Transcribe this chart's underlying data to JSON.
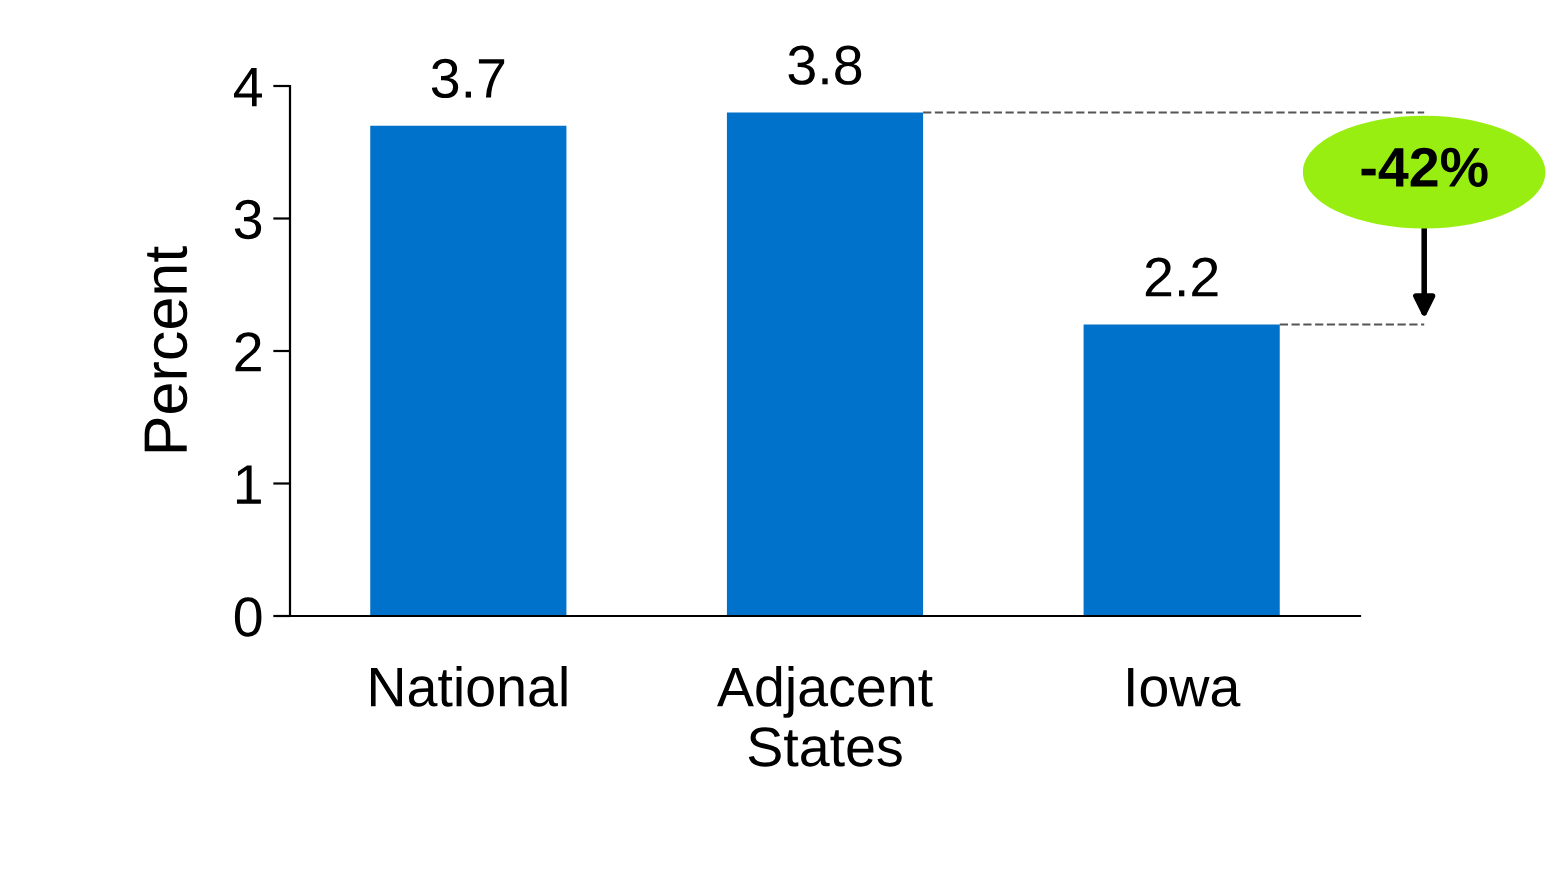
{
  "chart_data": {
    "type": "bar",
    "ylabel": "Percent",
    "categories": [
      "National",
      "Adjacent\nStates",
      "Iowa"
    ],
    "values": [
      3.7,
      3.8,
      2.2
    ],
    "color": "#0072cc",
    "ylim": [
      0,
      4
    ],
    "yticks": [
      0,
      1,
      2,
      3,
      4
    ],
    "grid": false,
    "data_labels": true,
    "annotations": [
      "-42%"
    ]
  }
}
